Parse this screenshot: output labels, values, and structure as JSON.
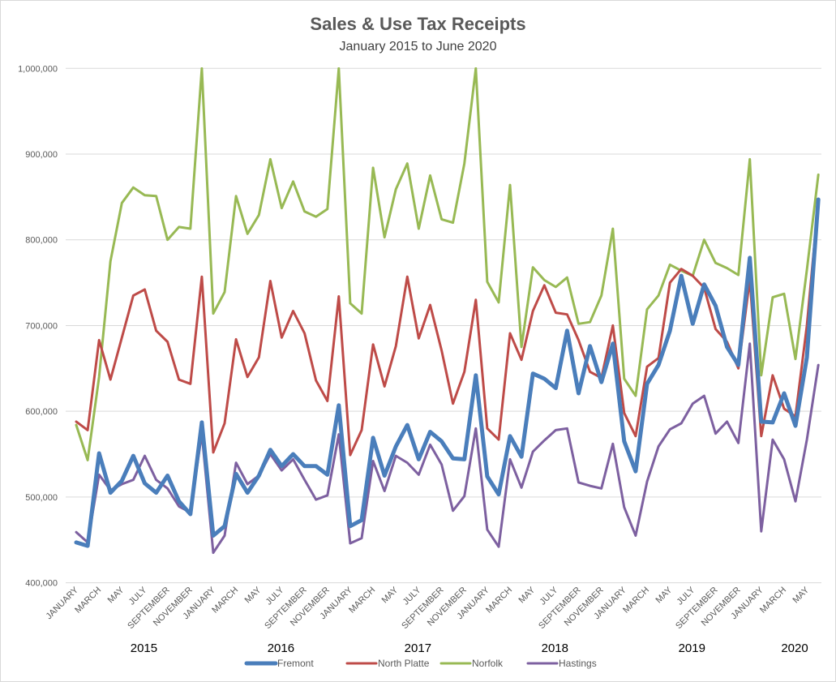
{
  "chart_data": {
    "type": "line",
    "title": "Sales & Use Tax Receipts",
    "subtitle": "January 2015 to June 2020",
    "xlabel": "",
    "ylabel": "",
    "ylim": [
      400000,
      1000000
    ],
    "yticks": [
      "400,000",
      "500,000",
      "600,000",
      "700,000",
      "800,000",
      "900,000",
      "1,000,000"
    ],
    "ytick_values": [
      400000,
      500000,
      600000,
      700000,
      800000,
      900000,
      1000000
    ],
    "grid": true,
    "legend": "bottom",
    "x_tick_labels": [
      "JANUARY",
      "MARCH",
      "MAY",
      "JULY",
      "SEPTEMBER",
      "NOVEMBER",
      "JANUARY",
      "MARCH",
      "MAY",
      "JULY",
      "SEPTEMBER",
      "NOVEMBER",
      "JANUARY",
      "MARCH",
      "MAY",
      "JULY",
      "SEPTEMBER",
      "NOVEMBER",
      "JANUARY",
      "MARCH",
      "MAY",
      "JULY",
      "SEPTEMBER",
      "NOVEMBER",
      "JANUARY",
      "MARCH",
      "MAY",
      "JULY",
      "SEPTEMBER",
      "NOVEMBER",
      "JANUARY",
      "MARCH",
      "MAY"
    ],
    "years": [
      "2015",
      "2016",
      "2017",
      "2018",
      "2019",
      "2020"
    ],
    "x_start": "2015-01",
    "x_end": "2020-06",
    "series": [
      {
        "name": "Fremont",
        "color": "#4a7ebb",
        "values": [
          447000,
          443000,
          551000,
          505000,
          519000,
          548000,
          516000,
          505000,
          525000,
          495000,
          480000,
          587000,
          455000,
          466000,
          527000,
          505000,
          525000,
          555000,
          536000,
          550000,
          536000,
          536000,
          526000,
          607000,
          466000,
          473000,
          569000,
          525000,
          559000,
          584000,
          544000,
          576000,
          565000,
          545000,
          544000,
          642000,
          524000,
          503000,
          571000,
          547000,
          644000,
          638000,
          627000,
          694000,
          621000,
          676000,
          634000,
          679000,
          565000,
          530000,
          632000,
          654000,
          694000,
          758000,
          702000,
          748000,
          723000,
          675000,
          654000,
          779000,
          588000,
          587000,
          621000,
          583000,
          663000,
          847000
        ]
      },
      {
        "name": "North Platte",
        "color": "#be4b48",
        "values": [
          588000,
          578000,
          683000,
          637000,
          686000,
          735000,
          742000,
          694000,
          681000,
          637000,
          632000,
          757000,
          552000,
          586000,
          684000,
          640000,
          663000,
          752000,
          686000,
          717000,
          691000,
          636000,
          612000,
          734000,
          549000,
          578000,
          678000,
          629000,
          676000,
          757000,
          685000,
          724000,
          671000,
          609000,
          646000,
          730000,
          580000,
          567000,
          691000,
          660000,
          717000,
          747000,
          715000,
          713000,
          683000,
          646000,
          639000,
          700000,
          598000,
          571000,
          652000,
          662000,
          750000,
          766000,
          758000,
          744000,
          696000,
          681000,
          650000,
          754000,
          571000,
          642000,
          603000,
          594000,
          700000,
          845000
        ]
      },
      {
        "name": "Norfolk",
        "color": "#98b954",
        "values": [
          584000,
          543000,
          640000,
          775000,
          843000,
          861000,
          852000,
          851000,
          800000,
          815000,
          813000,
          1000000,
          714000,
          739000,
          851000,
          807000,
          829000,
          894000,
          837000,
          868000,
          833000,
          827000,
          836000,
          1000000,
          726000,
          714000,
          884000,
          803000,
          859000,
          889000,
          813000,
          875000,
          824000,
          820000,
          889000,
          1000000,
          751000,
          727000,
          864000,
          675000,
          768000,
          753000,
          745000,
          756000,
          702000,
          704000,
          735000,
          813000,
          638000,
          618000,
          719000,
          735000,
          771000,
          764000,
          758000,
          800000,
          773000,
          767000,
          759000,
          894000,
          642000,
          733000,
          737000,
          661000,
          765000,
          876000
        ]
      },
      {
        "name": "Hastings",
        "color": "#7d60a0",
        "values": [
          459000,
          447000,
          526000,
          508000,
          515000,
          520000,
          548000,
          520000,
          510000,
          489000,
          482000,
          574000,
          435000,
          455000,
          540000,
          515000,
          525000,
          550000,
          531000,
          544000,
          520000,
          497000,
          502000,
          573000,
          446000,
          452000,
          542000,
          507000,
          548000,
          540000,
          526000,
          561000,
          538000,
          484000,
          501000,
          580000,
          462000,
          442000,
          544000,
          511000,
          553000,
          566000,
          578000,
          580000,
          517000,
          513000,
          510000,
          562000,
          488000,
          455000,
          518000,
          559000,
          579000,
          586000,
          609000,
          618000,
          574000,
          588000,
          563000,
          679000,
          460000,
          567000,
          544000,
          495000,
          567000,
          654000
        ]
      }
    ]
  }
}
